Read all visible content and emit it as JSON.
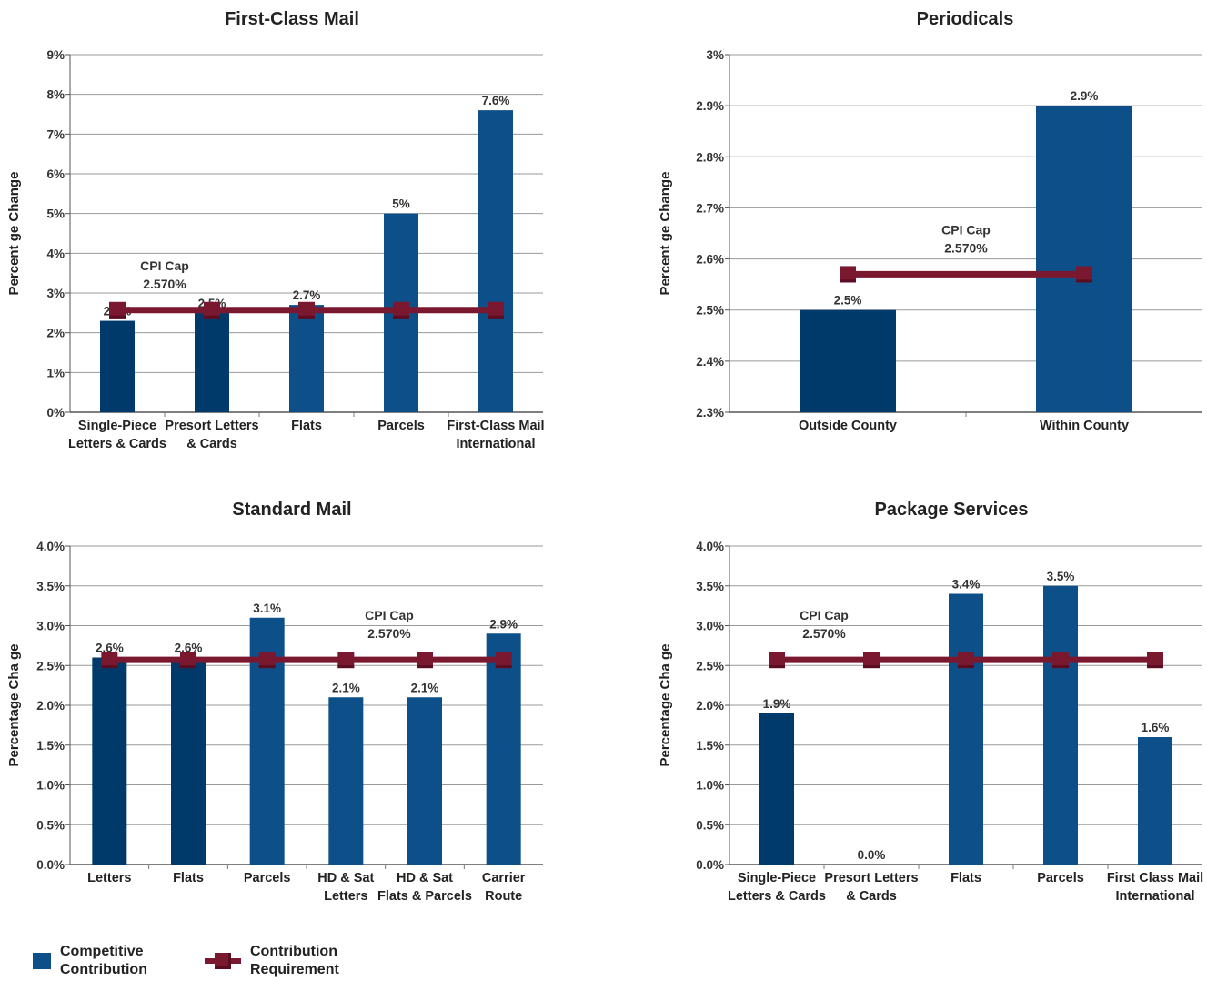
{
  "colors": {
    "bar_dark": "#003a6b",
    "bar_mid": "#0d5089",
    "cpi_line": "#7a1830",
    "grid": "#9a9a9a"
  },
  "legend": {
    "competitive": "Competitive\nContribution",
    "requirement": "Contribution\nRequirement"
  },
  "chart_data": [
    {
      "id": "first-class-mail",
      "type": "bar",
      "title": "First-Class Mail",
      "ylabel": "Percent   ge Change",
      "ylim": [
        0,
        9
      ],
      "yticks": [
        0,
        1,
        2,
        3,
        4,
        5,
        6,
        7,
        8,
        9
      ],
      "ytick_labels": [
        "0%",
        "1%",
        "2%",
        "3%",
        "4%",
        "5%",
        "6%",
        "7%",
        "8%",
        "9%"
      ],
      "categories": [
        [
          "Single-Piece",
          "Letters & Cards"
        ],
        [
          "Presort Letters",
          "& Cards"
        ],
        [
          "Flats"
        ],
        [
          "Parcels"
        ],
        [
          "First-Class Mail",
          "International"
        ]
      ],
      "values": [
        2.3,
        2.5,
        2.7,
        5.0,
        7.6
      ],
      "value_labels": [
        "2.3%",
        "2.5%",
        "2.7%",
        "5%",
        "7.6%"
      ],
      "cpi_cap": 2.57,
      "cpi_label": [
        "CPI Cap",
        "2.570%"
      ]
    },
    {
      "id": "periodicals",
      "type": "bar",
      "title": "Periodicals",
      "ylabel": "Percent   ge Change",
      "ylim": [
        2.3,
        3.0
      ],
      "yticks": [
        2.3,
        2.4,
        2.5,
        2.6,
        2.7,
        2.8,
        2.9,
        3.0
      ],
      "ytick_labels": [
        "2.3%",
        "2.4%",
        "2.5%",
        "2.6%",
        "2.7%",
        "2.8%",
        "2.9%",
        "3%"
      ],
      "categories": [
        [
          "Outside County"
        ],
        [
          "Within County"
        ]
      ],
      "values": [
        2.5,
        2.9
      ],
      "value_labels": [
        "2.5%",
        "2.9%"
      ],
      "cpi_cap": 2.57,
      "cpi_label": [
        "CPI Cap",
        "2.570%"
      ]
    },
    {
      "id": "standard-mail",
      "type": "bar",
      "title": "Standard Mail",
      "ylabel": "Percentage Cha   ge",
      "ylim": [
        0,
        4.0
      ],
      "yticks": [
        0,
        0.5,
        1.0,
        1.5,
        2.0,
        2.5,
        3.0,
        3.5,
        4.0
      ],
      "ytick_labels": [
        "0.0%",
        "0.5%",
        "1.0%",
        "1.5%",
        "2.0%",
        "2.5%",
        "3.0%",
        "3.5%",
        "4.0%"
      ],
      "categories": [
        [
          "Letters"
        ],
        [
          "Flats"
        ],
        [
          "Parcels"
        ],
        [
          "HD & Sat",
          "Letters"
        ],
        [
          "HD & Sat",
          "Flats & Parcels"
        ],
        [
          "Carrier",
          "Route"
        ]
      ],
      "values": [
        2.6,
        2.6,
        3.1,
        2.1,
        2.1,
        2.9
      ],
      "value_labels": [
        "2.6%",
        "2.6%",
        "3.1%",
        "2.1%",
        "2.1%",
        "2.9%"
      ],
      "cpi_cap": 2.57,
      "cpi_label": [
        "CPI Cap",
        "2.570%"
      ]
    },
    {
      "id": "package-services",
      "type": "bar",
      "title": "Package Services",
      "ylabel": "Percentage Cha   ge",
      "ylim": [
        0,
        4.0
      ],
      "yticks": [
        0,
        0.5,
        1.0,
        1.5,
        2.0,
        2.5,
        3.0,
        3.5,
        4.0
      ],
      "ytick_labels": [
        "0.0%",
        "0.5%",
        "1.0%",
        "1.5%",
        "2.0%",
        "2.5%",
        "3.0%",
        "3.5%",
        "4.0%"
      ],
      "categories": [
        [
          "Single-Piece",
          "Letters & Cards"
        ],
        [
          "Presort Letters",
          "& Cards"
        ],
        [
          "Flats"
        ],
        [
          "Parcels"
        ],
        [
          "First Class Mail",
          "International"
        ]
      ],
      "values": [
        1.9,
        0.0,
        3.4,
        3.5,
        1.6
      ],
      "value_labels": [
        "1.9%",
        "0.0%",
        "3.4%",
        "3.5%",
        "1.6%"
      ],
      "cpi_cap": 2.57,
      "cpi_label": [
        "CPI Cap",
        "2.570%"
      ]
    }
  ]
}
